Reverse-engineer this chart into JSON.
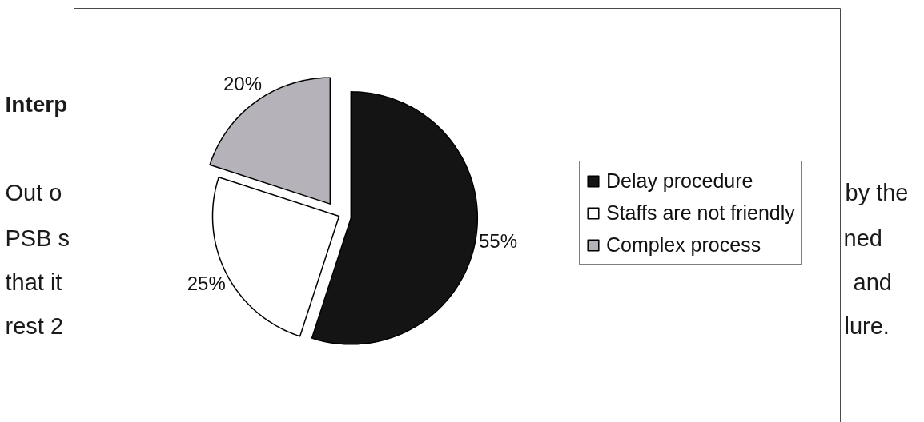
{
  "chart_data": {
    "type": "pie",
    "categories": [
      "Delay procedure",
      "Staffs are not friendly",
      "Complex process"
    ],
    "values": [
      55,
      25,
      20
    ],
    "colors": [
      "#141414",
      "#ffffff",
      "#b5b3b9"
    ],
    "value_labels": [
      "55%",
      "25%",
      "20%"
    ],
    "legend": "right",
    "annotations": [
      "Interp",
      "Out o",
      "PSB s",
      "that it",
      "rest 2",
      "by the",
      "ned",
      "and",
      "lure."
    ]
  }
}
